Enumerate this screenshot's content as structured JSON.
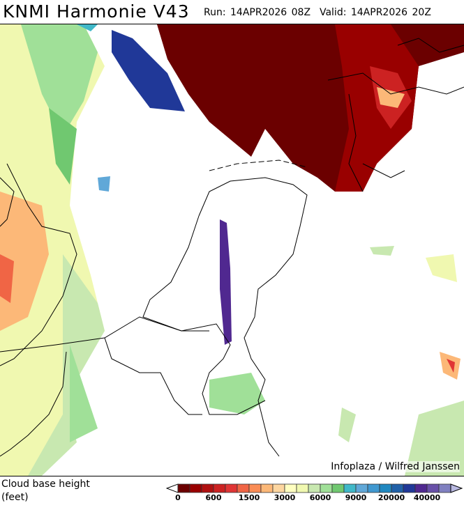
{
  "header": {
    "title": "KNMI Harmonie V43",
    "run": "Run: 14APR2026 08Z",
    "valid": "Valid: 14APR2026 20Z"
  },
  "credit": "Infoplaza / Wilfred Janssen",
  "legend": {
    "label_line1": "Cloud base height",
    "label_line2": "(feet)",
    "ticks": [
      "0",
      "600",
      "1500",
      "3000",
      "6000",
      "9000",
      "20000",
      "40000"
    ],
    "colors": [
      "#6b0000",
      "#990000",
      "#b01010",
      "#cc2222",
      "#e03535",
      "#f06545",
      "#fa8c55",
      "#fcb878",
      "#fdd6a0",
      "#ffffc0",
      "#f0f8b0",
      "#c8e8b0",
      "#a0e098",
      "#70c870",
      "#40b8c8",
      "#60a8d8",
      "#4098d0",
      "#2088c0",
      "#2060a8",
      "#203898",
      "#502890",
      "#6850a8",
      "#8080c0"
    ],
    "over_color": "#b8b8e0",
    "under_color": "#ffffff"
  }
}
